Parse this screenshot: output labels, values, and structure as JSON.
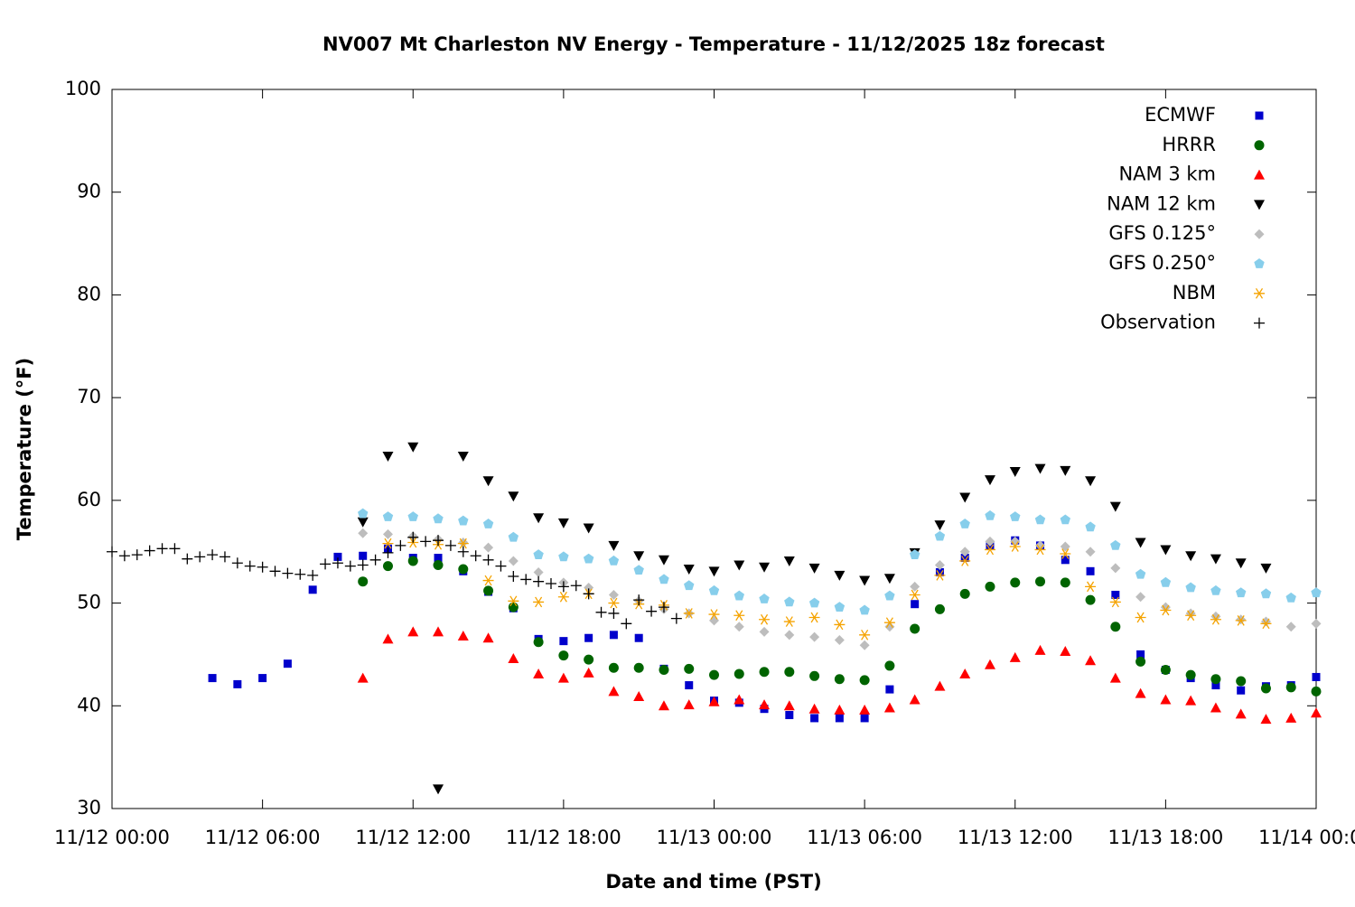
{
  "chart_data": {
    "type": "scatter",
    "title": "NV007 Mt Charleston NV Energy - Temperature - 11/12/2025 18z forecast",
    "xlabel": "Date and time (PST)",
    "ylabel": "Temperature (°F)",
    "xlim": [
      "11/12 00:00",
      "11/14 00:00"
    ],
    "xticks": [
      "11/12 00:00",
      "11/12 06:00",
      "11/12 12:00",
      "11/12 18:00",
      "11/13 00:00",
      "11/13 06:00",
      "11/13 12:00",
      "11/13 18:00",
      "11/14 00:00"
    ],
    "ylim": [
      30,
      100
    ],
    "yticks": [
      30,
      40,
      50,
      60,
      70,
      80,
      90,
      100
    ],
    "grid": false,
    "legend": "top-right",
    "series": [
      {
        "name": "ECMWF",
        "color": "#0000cc",
        "marker": "square",
        "x": [
          "11/12 04:00",
          "11/12 05:00",
          "11/12 06:00",
          "11/12 07:00",
          "11/12 08:00",
          "11/12 09:00",
          "11/12 10:00",
          "11/12 11:00",
          "11/12 12:00",
          "11/12 13:00",
          "11/12 14:00",
          "11/12 15:00",
          "11/12 16:00",
          "11/12 17:00",
          "11/12 18:00",
          "11/12 19:00",
          "11/12 20:00",
          "11/12 21:00",
          "11/12 22:00",
          "11/12 23:00",
          "11/13 00:00",
          "11/13 01:00",
          "11/13 02:00",
          "11/13 03:00",
          "11/13 04:00",
          "11/13 05:00",
          "11/13 06:00",
          "11/13 07:00",
          "11/13 08:00",
          "11/13 09:00",
          "11/13 10:00",
          "11/13 11:00",
          "11/13 12:00",
          "11/13 13:00",
          "11/13 14:00",
          "11/13 15:00",
          "11/13 16:00",
          "11/13 17:00",
          "11/13 18:00",
          "11/13 19:00",
          "11/13 20:00",
          "11/13 21:00",
          "11/13 22:00",
          "11/13 23:00",
          "11/14 00:00"
        ],
        "values": [
          42.7,
          42.1,
          42.7,
          44.1,
          51.3,
          54.5,
          54.6,
          55.3,
          54.4,
          54.4,
          53.1,
          51.1,
          49.5,
          46.5,
          46.3,
          46.6,
          46.9,
          46.6,
          43.6,
          42.0,
          40.5,
          40.3,
          39.7,
          39.1,
          38.8,
          38.8,
          38.8,
          41.6,
          49.9,
          53.0,
          54.4,
          55.6,
          56.1,
          55.6,
          54.2,
          53.1,
          50.8,
          45.0,
          43.5,
          42.7,
          42.0,
          41.5,
          41.9,
          42.0,
          42.8
        ]
      },
      {
        "name": "HRRR",
        "color": "#006400",
        "marker": "circle",
        "x": [
          "11/12 10:00",
          "11/12 11:00",
          "11/12 12:00",
          "11/12 13:00",
          "11/12 14:00",
          "11/12 15:00",
          "11/12 16:00",
          "11/12 17:00",
          "11/12 18:00",
          "11/12 19:00",
          "11/12 20:00",
          "11/12 21:00",
          "11/12 22:00",
          "11/12 23:00",
          "11/13 00:00",
          "11/13 01:00",
          "11/13 02:00",
          "11/13 03:00",
          "11/13 04:00",
          "11/13 05:00",
          "11/13 06:00",
          "11/13 07:00",
          "11/13 08:00",
          "11/13 09:00",
          "11/13 10:00",
          "11/13 11:00",
          "11/13 12:00",
          "11/13 13:00",
          "11/13 14:00",
          "11/13 15:00",
          "11/13 16:00",
          "11/13 17:00",
          "11/13 18:00",
          "11/13 19:00",
          "11/13 20:00",
          "11/13 21:00",
          "11/13 22:00",
          "11/13 23:00",
          "11/14 00:00"
        ],
        "values": [
          52.1,
          53.6,
          54.1,
          53.7,
          53.3,
          51.2,
          49.6,
          46.2,
          44.9,
          44.5,
          43.7,
          43.7,
          43.5,
          43.6,
          43.0,
          43.1,
          43.3,
          43.3,
          42.9,
          42.6,
          42.5,
          43.9,
          47.5,
          49.4,
          50.9,
          51.6,
          52.0,
          52.1,
          52.0,
          50.3,
          47.7,
          44.3,
          43.5,
          43.0,
          42.6,
          42.4,
          41.7,
          41.8,
          41.4
        ]
      },
      {
        "name": "NAM 3 km",
        "color": "#ff0000",
        "marker": "triangle-up",
        "x": [
          "11/12 10:00",
          "11/12 11:00",
          "11/12 12:00",
          "11/12 13:00",
          "11/12 14:00",
          "11/12 15:00",
          "11/12 16:00",
          "11/12 17:00",
          "11/12 18:00",
          "11/12 19:00",
          "11/12 20:00",
          "11/12 21:00",
          "11/12 22:00",
          "11/12 23:00",
          "11/13 00:00",
          "11/13 01:00",
          "11/13 02:00",
          "11/13 03:00",
          "11/13 04:00",
          "11/13 05:00",
          "11/13 06:00",
          "11/13 07:00",
          "11/13 08:00",
          "11/13 09:00",
          "11/13 10:00",
          "11/13 11:00",
          "11/13 12:00",
          "11/13 13:00",
          "11/13 14:00",
          "11/13 15:00",
          "11/13 16:00",
          "11/13 17:00",
          "11/13 18:00",
          "11/13 19:00",
          "11/13 20:00",
          "11/13 21:00",
          "11/13 22:00",
          "11/13 23:00",
          "11/14 00:00"
        ],
        "values": [
          42.7,
          46.5,
          47.2,
          47.2,
          46.8,
          46.6,
          44.6,
          43.1,
          42.7,
          43.2,
          41.4,
          40.9,
          40.0,
          40.1,
          40.4,
          40.6,
          40.1,
          40.0,
          39.7,
          39.6,
          39.6,
          39.8,
          40.6,
          41.9,
          43.1,
          44.0,
          44.7,
          45.4,
          45.3,
          44.4,
          42.7,
          41.2,
          40.6,
          40.5,
          39.8,
          39.2,
          38.7,
          38.8,
          39.3
        ]
      },
      {
        "name": "NAM 12 km",
        "color": "#000000",
        "marker": "triangle-down",
        "x": [
          "11/12 10:00",
          "11/12 11:00",
          "11/12 12:00",
          "11/12 13:00",
          "11/12 14:00",
          "11/12 15:00",
          "11/12 16:00",
          "11/12 17:00",
          "11/12 18:00",
          "11/12 19:00",
          "11/12 20:00",
          "11/12 21:00",
          "11/12 22:00",
          "11/12 23:00",
          "11/13 00:00",
          "11/13 01:00",
          "11/13 02:00",
          "11/13 03:00",
          "11/13 04:00",
          "11/13 05:00",
          "11/13 06:00",
          "11/13 07:00",
          "11/13 08:00",
          "11/13 09:00",
          "11/13 10:00",
          "11/13 11:00",
          "11/13 12:00",
          "11/13 13:00",
          "11/13 14:00",
          "11/13 15:00",
          "11/13 16:00",
          "11/13 17:00",
          "11/13 18:00",
          "11/13 19:00",
          "11/13 20:00",
          "11/13 21:00",
          "11/13 22:00"
        ],
        "values": [
          57.9,
          64.3,
          65.2,
          31.9,
          64.3,
          61.9,
          60.4,
          58.3,
          57.8,
          57.3,
          55.6,
          54.6,
          54.2,
          53.3,
          53.1,
          53.7,
          53.5,
          54.1,
          53.4,
          52.7,
          52.2,
          52.4,
          54.9,
          57.6,
          60.3,
          62.0,
          62.8,
          63.1,
          62.9,
          61.9,
          59.4,
          55.9,
          55.2,
          54.6,
          54.3,
          53.9,
          53.4
        ]
      },
      {
        "name": "GFS 0.125°",
        "color": "#bdbdbd",
        "marker": "diamond",
        "x": [
          "11/12 10:00",
          "11/12 11:00",
          "11/12 12:00",
          "11/12 13:00",
          "11/12 14:00",
          "11/12 15:00",
          "11/12 16:00",
          "11/12 17:00",
          "11/12 18:00",
          "11/12 19:00",
          "11/12 20:00",
          "11/12 21:00",
          "11/12 22:00",
          "11/12 23:00",
          "11/13 00:00",
          "11/13 01:00",
          "11/13 02:00",
          "11/13 03:00",
          "11/13 04:00",
          "11/13 05:00",
          "11/13 06:00",
          "11/13 07:00",
          "11/13 08:00",
          "11/13 09:00",
          "11/13 10:00",
          "11/13 11:00",
          "11/13 12:00",
          "11/13 13:00",
          "11/13 14:00",
          "11/13 15:00",
          "11/13 16:00",
          "11/13 17:00",
          "11/13 18:00",
          "11/13 19:00",
          "11/13 20:00",
          "11/13 21:00",
          "11/13 22:00",
          "11/13 23:00",
          "11/14 00:00"
        ],
        "values": [
          56.8,
          56.7,
          56.5,
          56.2,
          55.9,
          55.4,
          54.1,
          53.0,
          52.0,
          51.5,
          50.8,
          50.2,
          49.4,
          49.0,
          48.3,
          47.7,
          47.2,
          46.9,
          46.7,
          46.4,
          45.9,
          47.7,
          51.6,
          53.7,
          55.0,
          56.0,
          56.0,
          55.6,
          55.5,
          55.0,
          53.4,
          50.6,
          49.6,
          49.0,
          48.7,
          48.4,
          48.2,
          47.7,
          48.0
        ]
      },
      {
        "name": "GFS 0.250°",
        "color": "#87ceeb",
        "marker": "pentagon",
        "x": [
          "11/12 10:00",
          "11/12 11:00",
          "11/12 12:00",
          "11/12 13:00",
          "11/12 14:00",
          "11/12 15:00",
          "11/12 16:00",
          "11/12 17:00",
          "11/12 18:00",
          "11/12 19:00",
          "11/12 20:00",
          "11/12 21:00",
          "11/12 22:00",
          "11/12 23:00",
          "11/13 00:00",
          "11/13 01:00",
          "11/13 02:00",
          "11/13 03:00",
          "11/13 04:00",
          "11/13 05:00",
          "11/13 06:00",
          "11/13 07:00",
          "11/13 08:00",
          "11/13 09:00",
          "11/13 10:00",
          "11/13 11:00",
          "11/13 12:00",
          "11/13 13:00",
          "11/13 14:00",
          "11/13 15:00",
          "11/13 16:00",
          "11/13 17:00",
          "11/13 18:00",
          "11/13 19:00",
          "11/13 20:00",
          "11/13 21:00",
          "11/13 22:00",
          "11/13 23:00",
          "11/14 00:00"
        ],
        "values": [
          58.7,
          58.4,
          58.4,
          58.2,
          58.0,
          57.7,
          56.4,
          54.7,
          54.5,
          54.3,
          54.1,
          53.2,
          52.3,
          51.7,
          51.2,
          50.7,
          50.4,
          50.1,
          50.0,
          49.6,
          49.3,
          50.7,
          54.7,
          56.5,
          57.7,
          58.5,
          58.4,
          58.1,
          58.1,
          57.4,
          55.6,
          52.8,
          52.0,
          51.5,
          51.2,
          51.0,
          50.9,
          50.5,
          51.0
        ]
      },
      {
        "name": "NBM",
        "color": "#f5a300",
        "marker": "asterisk",
        "x": [
          "11/12 11:00",
          "11/12 12:00",
          "11/12 13:00",
          "11/12 14:00",
          "11/12 15:00",
          "11/12 16:00",
          "11/12 17:00",
          "11/12 18:00",
          "11/12 19:00",
          "11/12 20:00",
          "11/12 21:00",
          "11/12 22:00",
          "11/12 23:00",
          "11/13 00:00",
          "11/13 01:00",
          "11/13 02:00",
          "11/13 03:00",
          "11/13 04:00",
          "11/13 05:00",
          "11/13 06:00",
          "11/13 07:00",
          "11/13 08:00",
          "11/13 09:00",
          "11/13 10:00",
          "11/13 11:00",
          "11/13 12:00",
          "11/13 13:00",
          "11/13 14:00",
          "11/13 15:00",
          "11/13 16:00",
          "11/13 17:00",
          "11/13 18:00",
          "11/13 19:00",
          "11/13 20:00",
          "11/13 21:00",
          "11/13 22:00"
        ],
        "values": [
          55.8,
          55.9,
          55.7,
          55.8,
          52.2,
          50.2,
          50.1,
          50.6,
          50.9,
          50.0,
          49.9,
          49.8,
          49.0,
          48.9,
          48.8,
          48.4,
          48.2,
          48.6,
          47.9,
          46.9,
          48.1,
          50.8,
          52.7,
          54.1,
          55.2,
          55.5,
          55.2,
          54.8,
          51.6,
          50.1,
          48.6,
          49.3,
          48.8,
          48.4,
          48.3,
          48.0
        ]
      },
      {
        "name": "Observation",
        "color": "#000000",
        "marker": "plus",
        "x": [
          "11/12 00:00",
          "11/12 00:30",
          "11/12 01:00",
          "11/12 01:30",
          "11/12 02:00",
          "11/12 02:30",
          "11/12 03:00",
          "11/12 03:30",
          "11/12 04:00",
          "11/12 04:30",
          "11/12 05:00",
          "11/12 05:30",
          "11/12 06:00",
          "11/12 06:30",
          "11/12 07:00",
          "11/12 07:30",
          "11/12 08:00",
          "11/12 08:30",
          "11/12 09:00",
          "11/12 09:30",
          "11/12 10:00",
          "11/12 10:30",
          "11/12 11:00",
          "11/12 11:30",
          "11/12 12:00",
          "11/12 12:30",
          "11/12 13:00",
          "11/12 13:30",
          "11/12 14:00",
          "11/12 14:30",
          "11/12 15:00",
          "11/12 15:30",
          "11/12 16:00",
          "11/12 16:30",
          "11/12 17:00",
          "11/12 17:30",
          "11/12 18:00",
          "11/12 18:30",
          "11/12 19:00",
          "11/12 19:30",
          "11/12 20:00",
          "11/12 20:30",
          "11/12 21:00",
          "11/12 21:30",
          "11/12 22:00",
          "11/12 22:30"
        ],
        "values": [
          55.0,
          54.6,
          54.7,
          55.1,
          55.3,
          55.3,
          54.3,
          54.5,
          54.7,
          54.5,
          53.9,
          53.6,
          53.5,
          53.1,
          52.9,
          52.8,
          52.7,
          53.8,
          53.9,
          53.6,
          53.7,
          54.2,
          54.9,
          55.6,
          56.4,
          56.0,
          56.1,
          55.6,
          55.0,
          54.6,
          54.2,
          53.6,
          52.6,
          52.3,
          52.1,
          51.9,
          51.6,
          51.7,
          50.9,
          49.1,
          49.0,
          48.0,
          50.3,
          49.2,
          49.6,
          48.5
        ]
      }
    ]
  }
}
